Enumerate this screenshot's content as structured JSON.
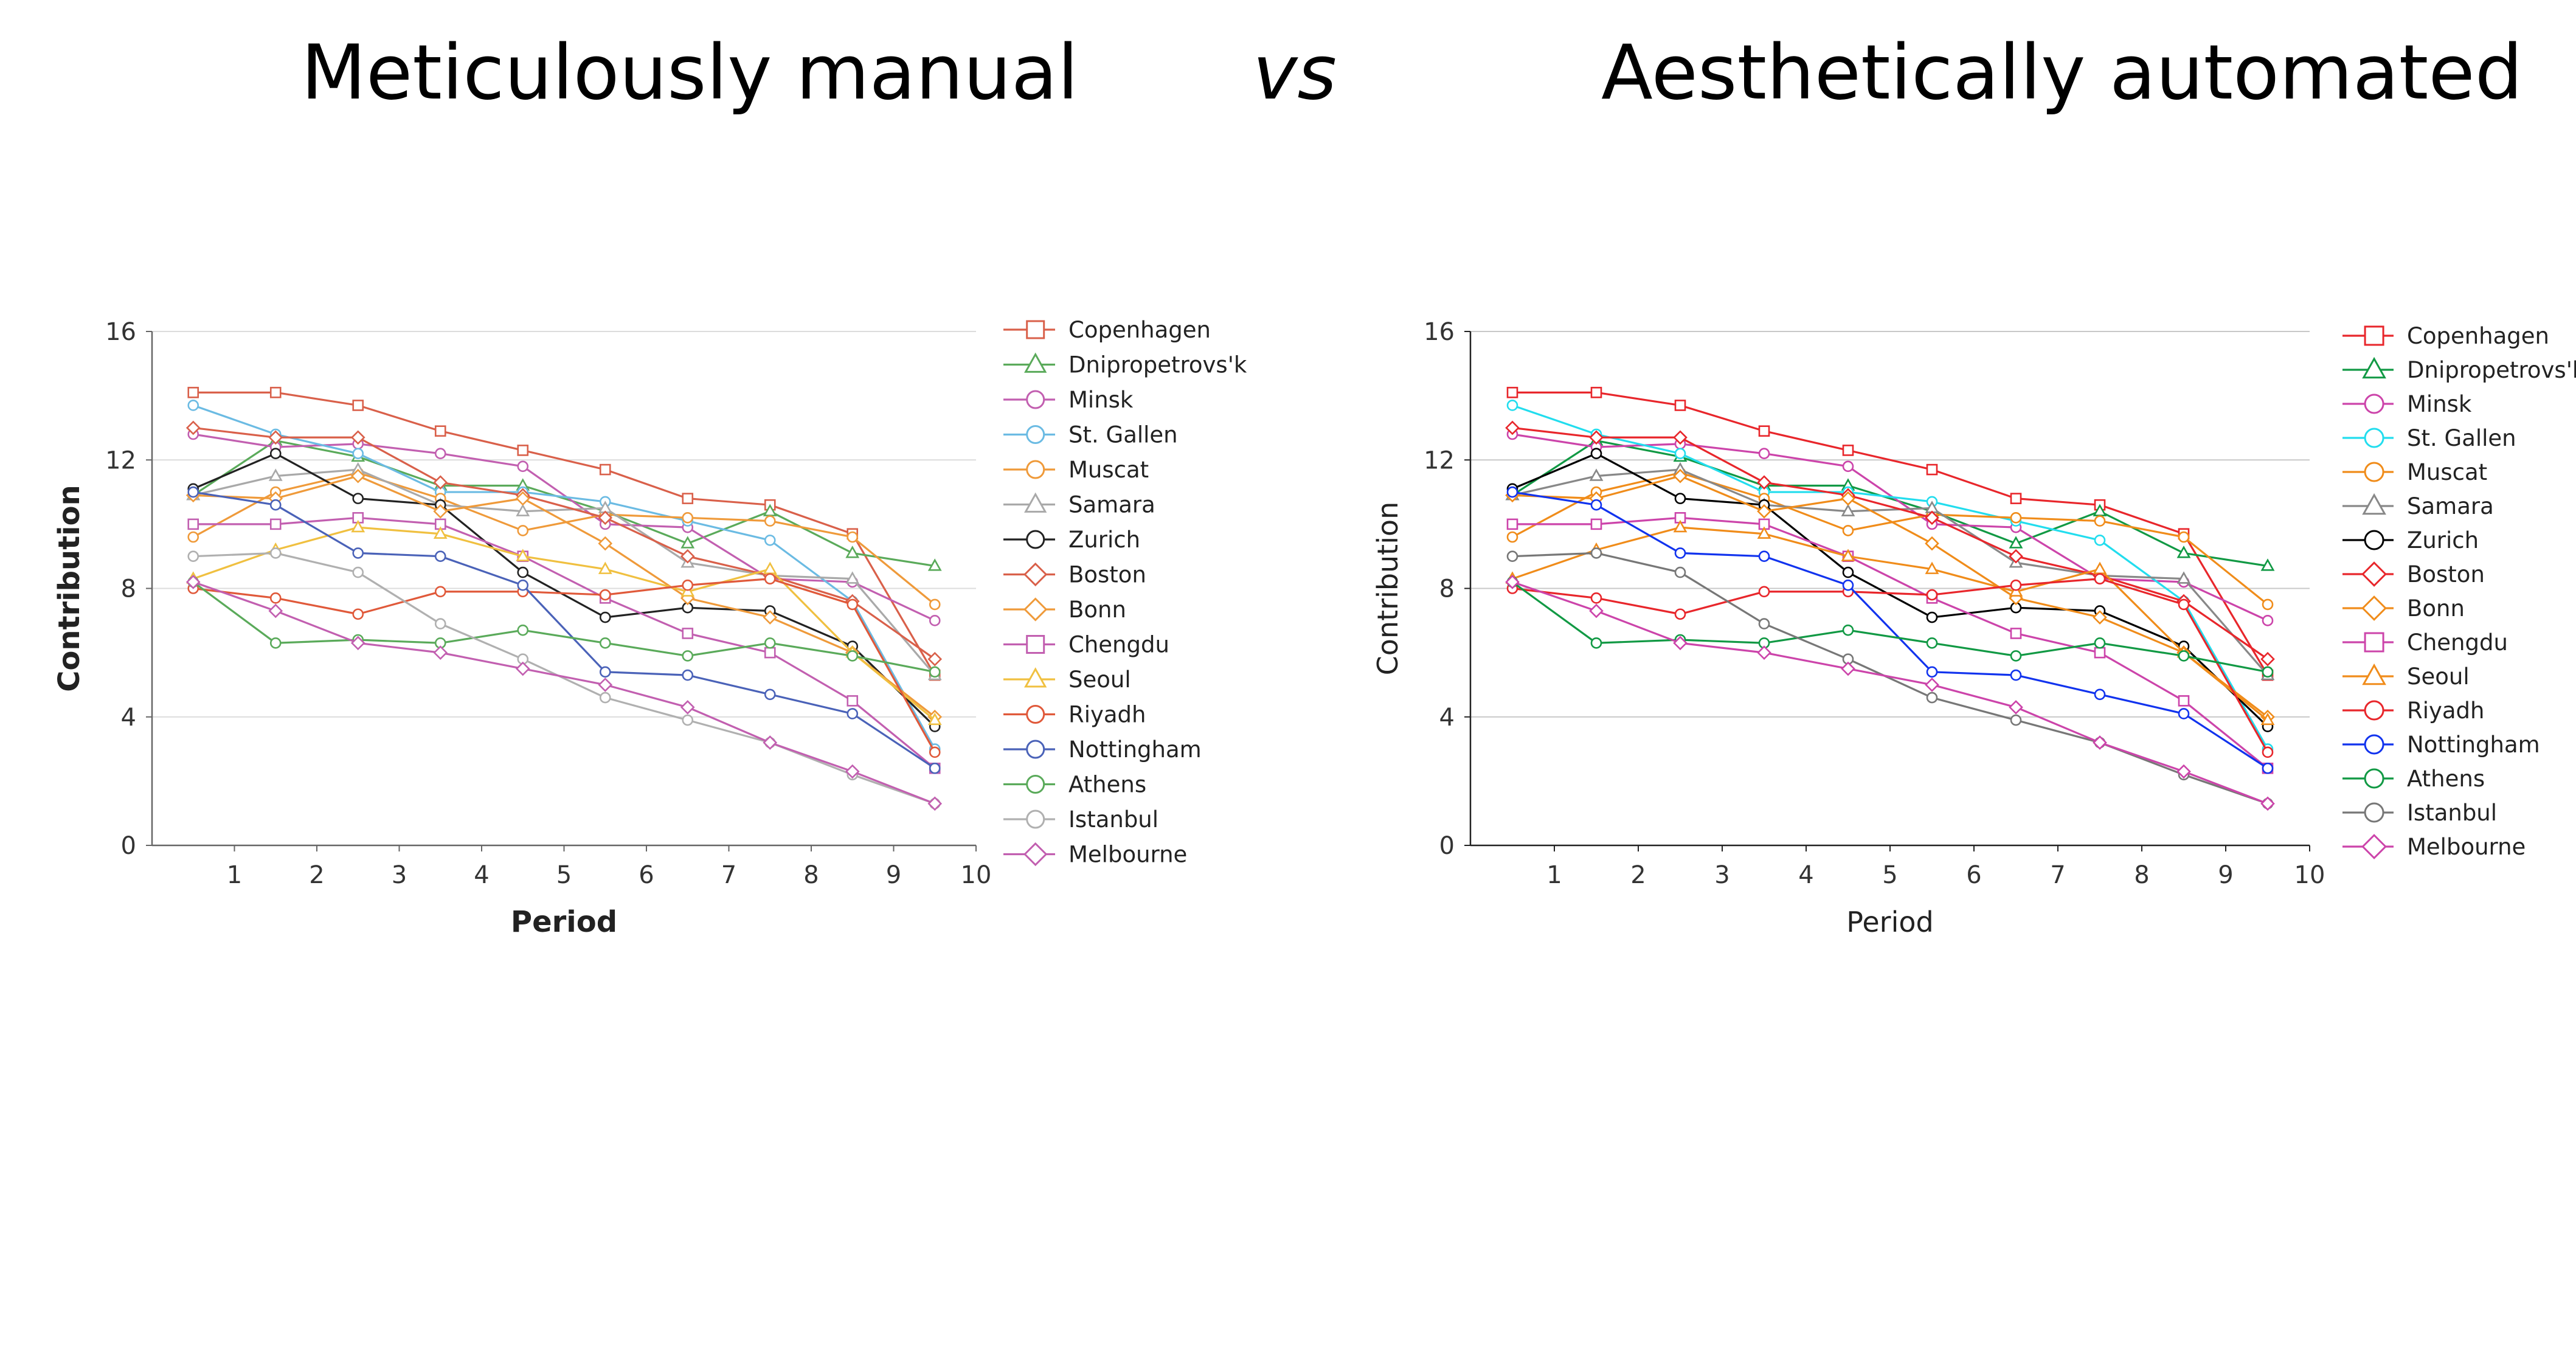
{
  "headings": {
    "left": "Meticulously manual",
    "vs": "vs",
    "right": "Aesthetically automated"
  },
  "chart_data": [
    {
      "type": "line",
      "panel": "left",
      "xlabel": "Period",
      "ylabel": "Contribution",
      "xlim": [
        0,
        10
      ],
      "ylim": [
        0,
        16
      ],
      "xticks": [
        "1",
        "2",
        "3",
        "4",
        "5",
        "6",
        "7",
        "8",
        "9",
        "10"
      ],
      "yticks": [
        "0",
        "4",
        "8",
        "12",
        "16"
      ],
      "grid": "horizontal",
      "legend": "right",
      "x": [
        0.5,
        1.5,
        2.5,
        3.5,
        4.5,
        5.5,
        6.5,
        7.5,
        8.5,
        9.5
      ],
      "series": [
        {
          "name": "Copenhagen",
          "color": "#d9604a",
          "marker": "square",
          "values": [
            14.1,
            14.1,
            13.7,
            12.9,
            12.3,
            11.7,
            10.8,
            10.6,
            9.7,
            5.3
          ]
        },
        {
          "name": "Dnipropetrovs'k",
          "color": "#5aaa5a",
          "marker": "triangle",
          "values": [
            10.9,
            12.6,
            12.1,
            11.2,
            11.2,
            10.4,
            9.4,
            10.4,
            9.1,
            8.7
          ]
        },
        {
          "name": "Minsk",
          "color": "#c25fb0",
          "marker": "circle",
          "values": [
            12.8,
            12.4,
            12.5,
            12.2,
            11.8,
            10.0,
            9.9,
            8.3,
            8.2,
            7.0
          ]
        },
        {
          "name": "St. Gallen",
          "color": "#6bbbe3",
          "marker": "circle",
          "values": [
            13.7,
            12.8,
            12.2,
            11.0,
            11.0,
            10.7,
            10.1,
            9.5,
            7.6,
            3.0
          ]
        },
        {
          "name": "Muscat",
          "color": "#ef9a3a",
          "marker": "circle",
          "values": [
            9.6,
            11.0,
            11.6,
            10.8,
            9.8,
            10.3,
            10.2,
            10.1,
            9.6,
            7.5
          ]
        },
        {
          "name": "Samara",
          "color": "#a9a9a9",
          "marker": "triangle",
          "values": [
            10.9,
            11.5,
            11.7,
            10.6,
            10.4,
            10.5,
            8.8,
            8.4,
            8.3,
            5.3
          ]
        },
        {
          "name": "Zurich",
          "color": "#222222",
          "marker": "circle",
          "values": [
            11.1,
            12.2,
            10.8,
            10.6,
            8.5,
            7.1,
            7.4,
            7.3,
            6.2,
            3.7
          ]
        },
        {
          "name": "Boston",
          "color": "#d9604a",
          "marker": "diamond",
          "values": [
            13.0,
            12.7,
            12.7,
            11.3,
            10.9,
            10.2,
            9.0,
            8.4,
            7.6,
            5.8
          ]
        },
        {
          "name": "Bonn",
          "color": "#ef9a3a",
          "marker": "diamond",
          "values": [
            10.9,
            10.8,
            11.5,
            10.4,
            10.8,
            9.4,
            7.7,
            7.1,
            6.0,
            4.0
          ]
        },
        {
          "name": "Chengdu",
          "color": "#c25fb0",
          "marker": "square",
          "values": [
            10.0,
            10.0,
            10.2,
            10.0,
            9.0,
            7.7,
            6.6,
            6.0,
            4.5,
            2.4
          ]
        },
        {
          "name": "Seoul",
          "color": "#f0c040",
          "marker": "triangle",
          "values": [
            8.3,
            9.2,
            9.9,
            9.7,
            9.0,
            8.6,
            7.9,
            8.6,
            6.0,
            3.9
          ]
        },
        {
          "name": "Riyadh",
          "color": "#e0593a",
          "marker": "circle",
          "values": [
            8.0,
            7.7,
            7.2,
            7.9,
            7.9,
            7.8,
            8.1,
            8.3,
            7.5,
            2.9
          ]
        },
        {
          "name": "Nottingham",
          "color": "#4a62b8",
          "marker": "circle",
          "values": [
            11.0,
            10.6,
            9.1,
            9.0,
            8.1,
            5.4,
            5.3,
            4.7,
            4.1,
            2.4
          ]
        },
        {
          "name": "Athens",
          "color": "#5aaa5a",
          "marker": "circle",
          "values": [
            8.2,
            6.3,
            6.4,
            6.3,
            6.7,
            6.3,
            5.9,
            6.3,
            5.9,
            5.4
          ]
        },
        {
          "name": "Istanbul",
          "color": "#b0b0b0",
          "marker": "circle",
          "values": [
            9.0,
            9.1,
            8.5,
            6.9,
            5.8,
            4.6,
            3.9,
            3.2,
            2.2,
            1.3
          ]
        },
        {
          "name": "Melbourne",
          "color": "#c25fb0",
          "marker": "diamond",
          "values": [
            8.2,
            7.3,
            6.3,
            6.0,
            5.5,
            5.0,
            4.3,
            3.2,
            2.3,
            1.3
          ]
        }
      ]
    },
    {
      "type": "line",
      "panel": "right",
      "xlabel": "Period",
      "ylabel": "Contribution",
      "xlim": [
        0,
        10
      ],
      "ylim": [
        0,
        16
      ],
      "xticks": [
        "1",
        "2",
        "3",
        "4",
        "5",
        "6",
        "7",
        "8",
        "9",
        "10"
      ],
      "yticks": [
        "0",
        "4",
        "8",
        "12",
        "16"
      ],
      "grid": "horizontal",
      "legend": "right",
      "x": [
        0.5,
        1.5,
        2.5,
        3.5,
        4.5,
        5.5,
        6.5,
        7.5,
        8.5,
        9.5
      ],
      "series": [
        {
          "name": "Copenhagen",
          "color": "#e8262b",
          "marker": "square",
          "values": [
            14.1,
            14.1,
            13.7,
            12.9,
            12.3,
            11.7,
            10.8,
            10.6,
            9.7,
            5.3
          ]
        },
        {
          "name": "Dnipropetrovs'k",
          "color": "#119944",
          "marker": "triangle",
          "values": [
            10.9,
            12.6,
            12.1,
            11.2,
            11.2,
            10.4,
            9.4,
            10.4,
            9.1,
            8.7
          ]
        },
        {
          "name": "Minsk",
          "color": "#cc44aa",
          "marker": "circle",
          "values": [
            12.8,
            12.4,
            12.5,
            12.2,
            11.8,
            10.0,
            9.9,
            8.3,
            8.2,
            7.0
          ]
        },
        {
          "name": "St. Gallen",
          "color": "#22ddee",
          "marker": "circle",
          "values": [
            13.7,
            12.8,
            12.2,
            11.0,
            11.0,
            10.7,
            10.1,
            9.5,
            7.6,
            3.0
          ]
        },
        {
          "name": "Muscat",
          "color": "#f08c1a",
          "marker": "circle",
          "values": [
            9.6,
            11.0,
            11.6,
            10.8,
            9.8,
            10.3,
            10.2,
            10.1,
            9.6,
            7.5
          ]
        },
        {
          "name": "Samara",
          "color": "#888888",
          "marker": "triangle",
          "values": [
            10.9,
            11.5,
            11.7,
            10.6,
            10.4,
            10.5,
            8.8,
            8.4,
            8.3,
            5.3
          ]
        },
        {
          "name": "Zurich",
          "color": "#000000",
          "marker": "circle",
          "values": [
            11.1,
            12.2,
            10.8,
            10.6,
            8.5,
            7.1,
            7.4,
            7.3,
            6.2,
            3.7
          ]
        },
        {
          "name": "Boston",
          "color": "#e8262b",
          "marker": "diamond",
          "values": [
            13.0,
            12.7,
            12.7,
            11.3,
            10.9,
            10.2,
            9.0,
            8.4,
            7.6,
            5.8
          ]
        },
        {
          "name": "Bonn",
          "color": "#f08c1a",
          "marker": "diamond",
          "values": [
            10.9,
            10.8,
            11.5,
            10.4,
            10.8,
            9.4,
            7.7,
            7.1,
            6.0,
            4.0
          ]
        },
        {
          "name": "Chengdu",
          "color": "#cc44aa",
          "marker": "square",
          "values": [
            10.0,
            10.0,
            10.2,
            10.0,
            9.0,
            7.7,
            6.6,
            6.0,
            4.5,
            2.4
          ]
        },
        {
          "name": "Seoul",
          "color": "#f08c1a",
          "marker": "triangle",
          "values": [
            8.3,
            9.2,
            9.9,
            9.7,
            9.0,
            8.6,
            7.9,
            8.6,
            6.0,
            3.9
          ]
        },
        {
          "name": "Riyadh",
          "color": "#e8262b",
          "marker": "circle",
          "values": [
            8.0,
            7.7,
            7.2,
            7.9,
            7.9,
            7.8,
            8.1,
            8.3,
            7.5,
            2.9
          ]
        },
        {
          "name": "Nottingham",
          "color": "#1133ee",
          "marker": "circle",
          "values": [
            11.0,
            10.6,
            9.1,
            9.0,
            8.1,
            5.4,
            5.3,
            4.7,
            4.1,
            2.4
          ]
        },
        {
          "name": "Athens",
          "color": "#119944",
          "marker": "circle",
          "values": [
            8.2,
            6.3,
            6.4,
            6.3,
            6.7,
            6.3,
            5.9,
            6.3,
            5.9,
            5.4
          ]
        },
        {
          "name": "Istanbul",
          "color": "#777777",
          "marker": "circle",
          "values": [
            9.0,
            9.1,
            8.5,
            6.9,
            5.8,
            4.6,
            3.9,
            3.2,
            2.2,
            1.3
          ]
        },
        {
          "name": "Melbourne",
          "color": "#cc44aa",
          "marker": "diamond",
          "values": [
            8.2,
            7.3,
            6.3,
            6.0,
            5.5,
            5.0,
            4.3,
            3.2,
            2.3,
            1.3
          ]
        }
      ]
    }
  ]
}
